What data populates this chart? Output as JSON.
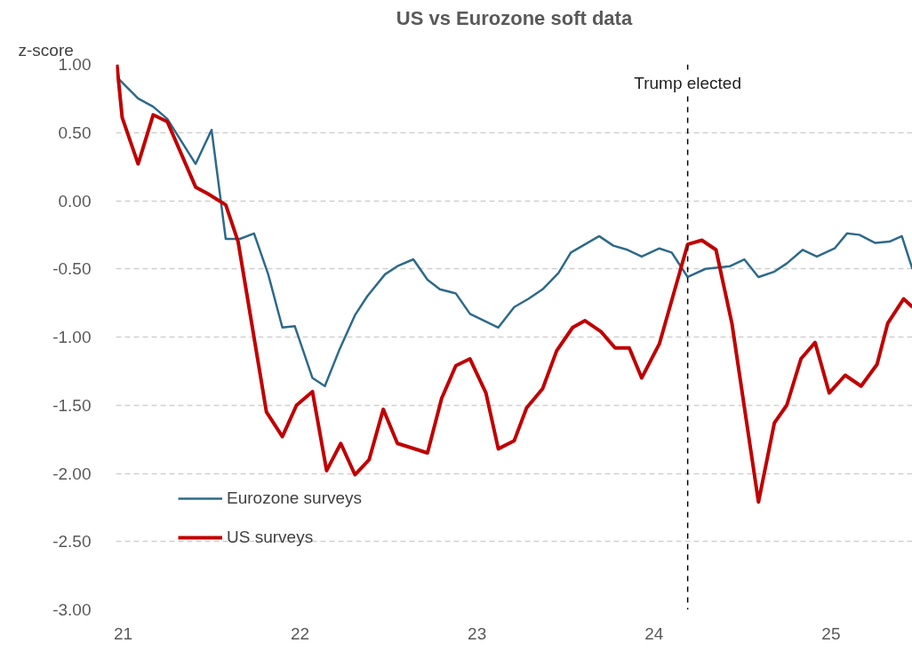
{
  "chart_data": {
    "type": "line",
    "title": "US vs Eurozone soft data",
    "ylabel": "z-score",
    "xlim": [
      20.96,
      25.46
    ],
    "xticks": [
      21,
      22,
      23,
      24,
      25
    ],
    "ylim": [
      -3.0,
      1.0
    ],
    "yticks": [
      {
        "value": 1,
        "label": "1.00"
      },
      {
        "value": 0.5,
        "label": "0.50"
      },
      {
        "value": 0,
        "label": "0.00"
      },
      {
        "value": -0.5,
        "label": "-0.50"
      },
      {
        "value": -1,
        "label": "-1.00"
      },
      {
        "value": -1.5,
        "label": "-1.50"
      },
      {
        "value": -2,
        "label": "-2.00"
      },
      {
        "value": -2.5,
        "label": "-2.50"
      },
      {
        "value": -3,
        "label": "-3.00"
      }
    ],
    "grid": "y",
    "legend": "bottom left",
    "line_style": "solid",
    "marker": "none",
    "ref_lines": [
      {
        "axis": "x",
        "value": 24.19,
        "label": "Trump elected",
        "color": "#000000",
        "line_style": "dashed"
      }
    ],
    "series": [
      {
        "name": "Eurozone surveys",
        "color": "#2e6a8a",
        "x": [
          20.97,
          21.085,
          21.17,
          21.25,
          21.41,
          21.5,
          21.58,
          21.66,
          21.74,
          21.82,
          21.9,
          21.97,
          22.07,
          22.14,
          22.22,
          22.31,
          22.38,
          22.48,
          22.55,
          22.64,
          22.72,
          22.79,
          22.88,
          22.96,
          23.04,
          23.12,
          23.21,
          23.29,
          23.37,
          23.46,
          23.53,
          23.61,
          23.69,
          23.77,
          23.85,
          23.93,
          24.03,
          24.1,
          24.19,
          24.29,
          24.43,
          24.51,
          24.59,
          24.68,
          24.75,
          24.84,
          24.92,
          25.02,
          25.09,
          25.16,
          25.25,
          25.33,
          25.4,
          25.46
        ],
        "values": [
          0.9,
          0.75,
          0.69,
          0.6,
          0.27,
          0.52,
          -0.28,
          -0.28,
          -0.24,
          -0.54,
          -0.93,
          -0.92,
          -1.3,
          -1.36,
          -1.1,
          -0.84,
          -0.7,
          -0.54,
          -0.48,
          -0.43,
          -0.58,
          -0.65,
          -0.68,
          -0.83,
          -0.88,
          -0.93,
          -0.78,
          -0.72,
          -0.65,
          -0.53,
          -0.38,
          -0.32,
          -0.26,
          -0.33,
          -0.36,
          -0.41,
          -0.35,
          -0.38,
          -0.56,
          -0.5,
          -0.48,
          -0.43,
          -0.56,
          -0.52,
          -0.46,
          -0.36,
          -0.41,
          -0.35,
          -0.24,
          -0.25,
          -0.31,
          -0.3,
          -0.26,
          -0.5
        ]
      },
      {
        "name": "US surveys",
        "color": "#c00000",
        "x": [
          20.965,
          20.995,
          21.085,
          21.17,
          21.25,
          21.41,
          21.48,
          21.58,
          21.65,
          21.81,
          21.9,
          21.98,
          22.07,
          22.15,
          22.23,
          22.31,
          22.39,
          22.47,
          22.55,
          22.72,
          22.8,
          22.88,
          22.96,
          23.05,
          23.12,
          23.21,
          23.28,
          23.37,
          23.45,
          23.54,
          23.61,
          23.7,
          23.78,
          23.86,
          23.93,
          24.03,
          24.19,
          24.27,
          24.35,
          24.44,
          24.59,
          24.68,
          24.75,
          24.83,
          24.91,
          24.99,
          25.08,
          25.17,
          25.26,
          25.32,
          25.41,
          25.46
        ],
        "values": [
          1.0,
          0.61,
          0.27,
          0.63,
          0.58,
          0.1,
          0.05,
          -0.03,
          -0.3,
          -1.55,
          -1.73,
          -1.5,
          -1.4,
          -1.98,
          -1.78,
          -2.01,
          -1.9,
          -1.53,
          -1.78,
          -1.85,
          -1.45,
          -1.21,
          -1.16,
          -1.41,
          -1.82,
          -1.76,
          -1.52,
          -1.38,
          -1.1,
          -0.93,
          -0.88,
          -0.96,
          -1.08,
          -1.08,
          -1.3,
          -1.05,
          -0.32,
          -0.29,
          -0.36,
          -0.9,
          -2.21,
          -1.63,
          -1.5,
          -1.16,
          -1.04,
          -1.41,
          -1.28,
          -1.36,
          -1.2,
          -0.9,
          -0.72,
          -0.78
        ]
      }
    ]
  }
}
